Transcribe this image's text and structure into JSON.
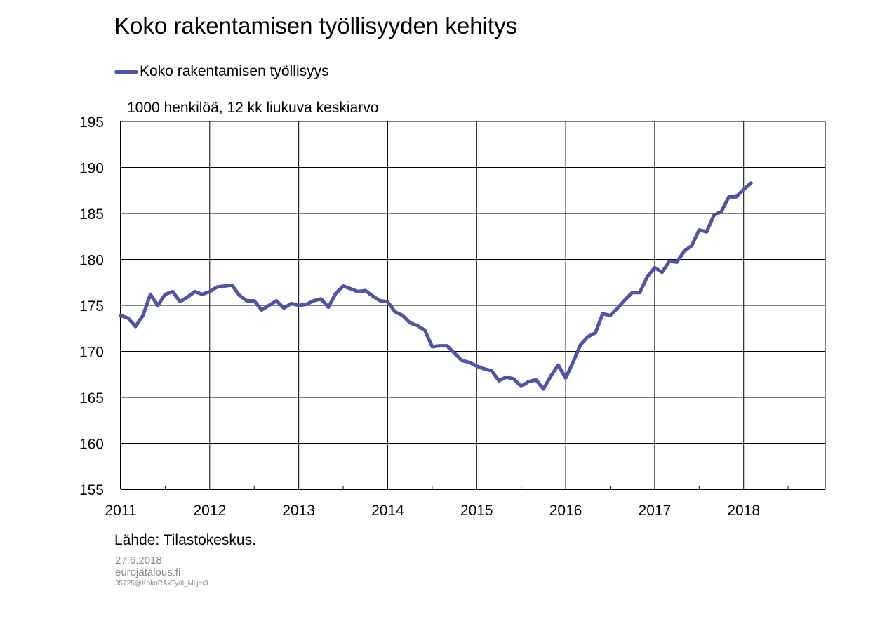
{
  "title": "Koko rakentamisen työllisyyden kehitys",
  "legend": {
    "label": "Koko rakentamisen työllisyys"
  },
  "unit_label": "1000 henkilöä, 12 kk liukuva keskiarvo",
  "source": "Lähde: Tilastokeskus.",
  "footer": {
    "date": "27.6.2018",
    "site": "eurojatalous.fi",
    "code": "35725@KokoRAkTyöl_Miljm3"
  },
  "colors": {
    "series": "#4f55a4",
    "grid": "#000000",
    "text": "#000000",
    "footer": "#8a8a8a"
  },
  "chart_data": {
    "type": "line",
    "title": "Koko rakentamisen työllisyyden kehitys",
    "ylabel": "1000 henkilöä, 12 kk liukuva keskiarvo",
    "xlabel": "",
    "xlim": [
      2011,
      2018.917
    ],
    "ylim": [
      155,
      195
    ],
    "y_ticks": [
      155,
      160,
      165,
      170,
      175,
      180,
      185,
      190,
      195
    ],
    "x_ticks": [
      2011,
      2012,
      2013,
      2014,
      2015,
      2016,
      2017,
      2018
    ],
    "x_tick_labels": [
      "2011",
      "2012",
      "2013",
      "2014",
      "2015",
      "2016",
      "2017",
      "2018"
    ],
    "grid": true,
    "legend_position": "top-left",
    "series": [
      {
        "name": "Koko rakentamisen työllisyys",
        "color": "#4f55a4",
        "start": "2011-01",
        "frequency": "monthly",
        "values": [
          173.9,
          173.6,
          172.7,
          173.9,
          176.2,
          175.0,
          176.2,
          176.5,
          175.4,
          175.9,
          176.5,
          176.2,
          176.5,
          177.0,
          177.1,
          177.2,
          176.1,
          175.5,
          175.5,
          174.5,
          175.0,
          175.5,
          174.7,
          175.2,
          175.0,
          175.1,
          175.5,
          175.7,
          174.8,
          176.3,
          177.1,
          176.8,
          176.5,
          176.6,
          176.0,
          175.5,
          175.4,
          174.3,
          173.9,
          173.1,
          172.8,
          172.3,
          170.5,
          170.6,
          170.6,
          169.8,
          169.0,
          168.8,
          168.4,
          168.1,
          167.9,
          166.8,
          167.2,
          167.0,
          166.2,
          166.7,
          166.9,
          165.9,
          167.3,
          168.5,
          167.1,
          168.8,
          170.7,
          171.6,
          172.0,
          174.1,
          173.9,
          174.7,
          175.6,
          176.4,
          176.4,
          178.1,
          179.1,
          178.6,
          179.8,
          179.7,
          180.9,
          181.5,
          183.2,
          183.0,
          184.8,
          185.2,
          186.8,
          186.8,
          187.6,
          188.3
        ]
      }
    ]
  }
}
